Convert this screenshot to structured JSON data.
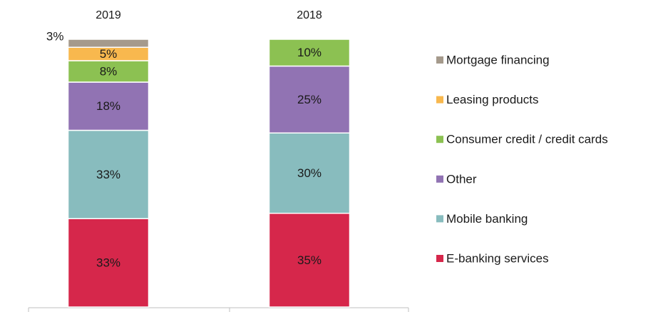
{
  "chart_data": {
    "type": "stacked_bar",
    "categories": [
      "2019",
      "2018"
    ],
    "series": [
      {
        "name": "E-banking services",
        "color": "#d6274b",
        "label_color": "#ffffff",
        "values": [
          33,
          35
        ],
        "value_labels": [
          "33%",
          "35%"
        ]
      },
      {
        "name": "Mobile banking",
        "color": "#88bcbe",
        "label_color": "#1a1a1a",
        "values": [
          33,
          30
        ],
        "value_labels": [
          "33%",
          "30%"
        ]
      },
      {
        "name": "Other",
        "color": "#9173b3",
        "label_color": "#ffffff",
        "values": [
          18,
          25
        ],
        "value_labels": [
          "18%",
          "25%"
        ]
      },
      {
        "name": "Consumer credit / credit cards",
        "color": "#8cc152",
        "label_color": "#1a1a1a",
        "values": [
          8,
          10
        ],
        "value_labels": [
          "8%",
          "10%"
        ]
      },
      {
        "name": "Leasing products",
        "color": "#f8b84e",
        "label_color": "#1a1a1a",
        "values": [
          5,
          null
        ],
        "value_labels": [
          "5%",
          null
        ]
      },
      {
        "name": "Mortgage financing",
        "color": "#a59a8c",
        "label_color": "#1a1a1a",
        "values": [
          3,
          null
        ],
        "value_labels": [
          "3%",
          null
        ]
      }
    ],
    "ylim": [
      0,
      100
    ]
  }
}
